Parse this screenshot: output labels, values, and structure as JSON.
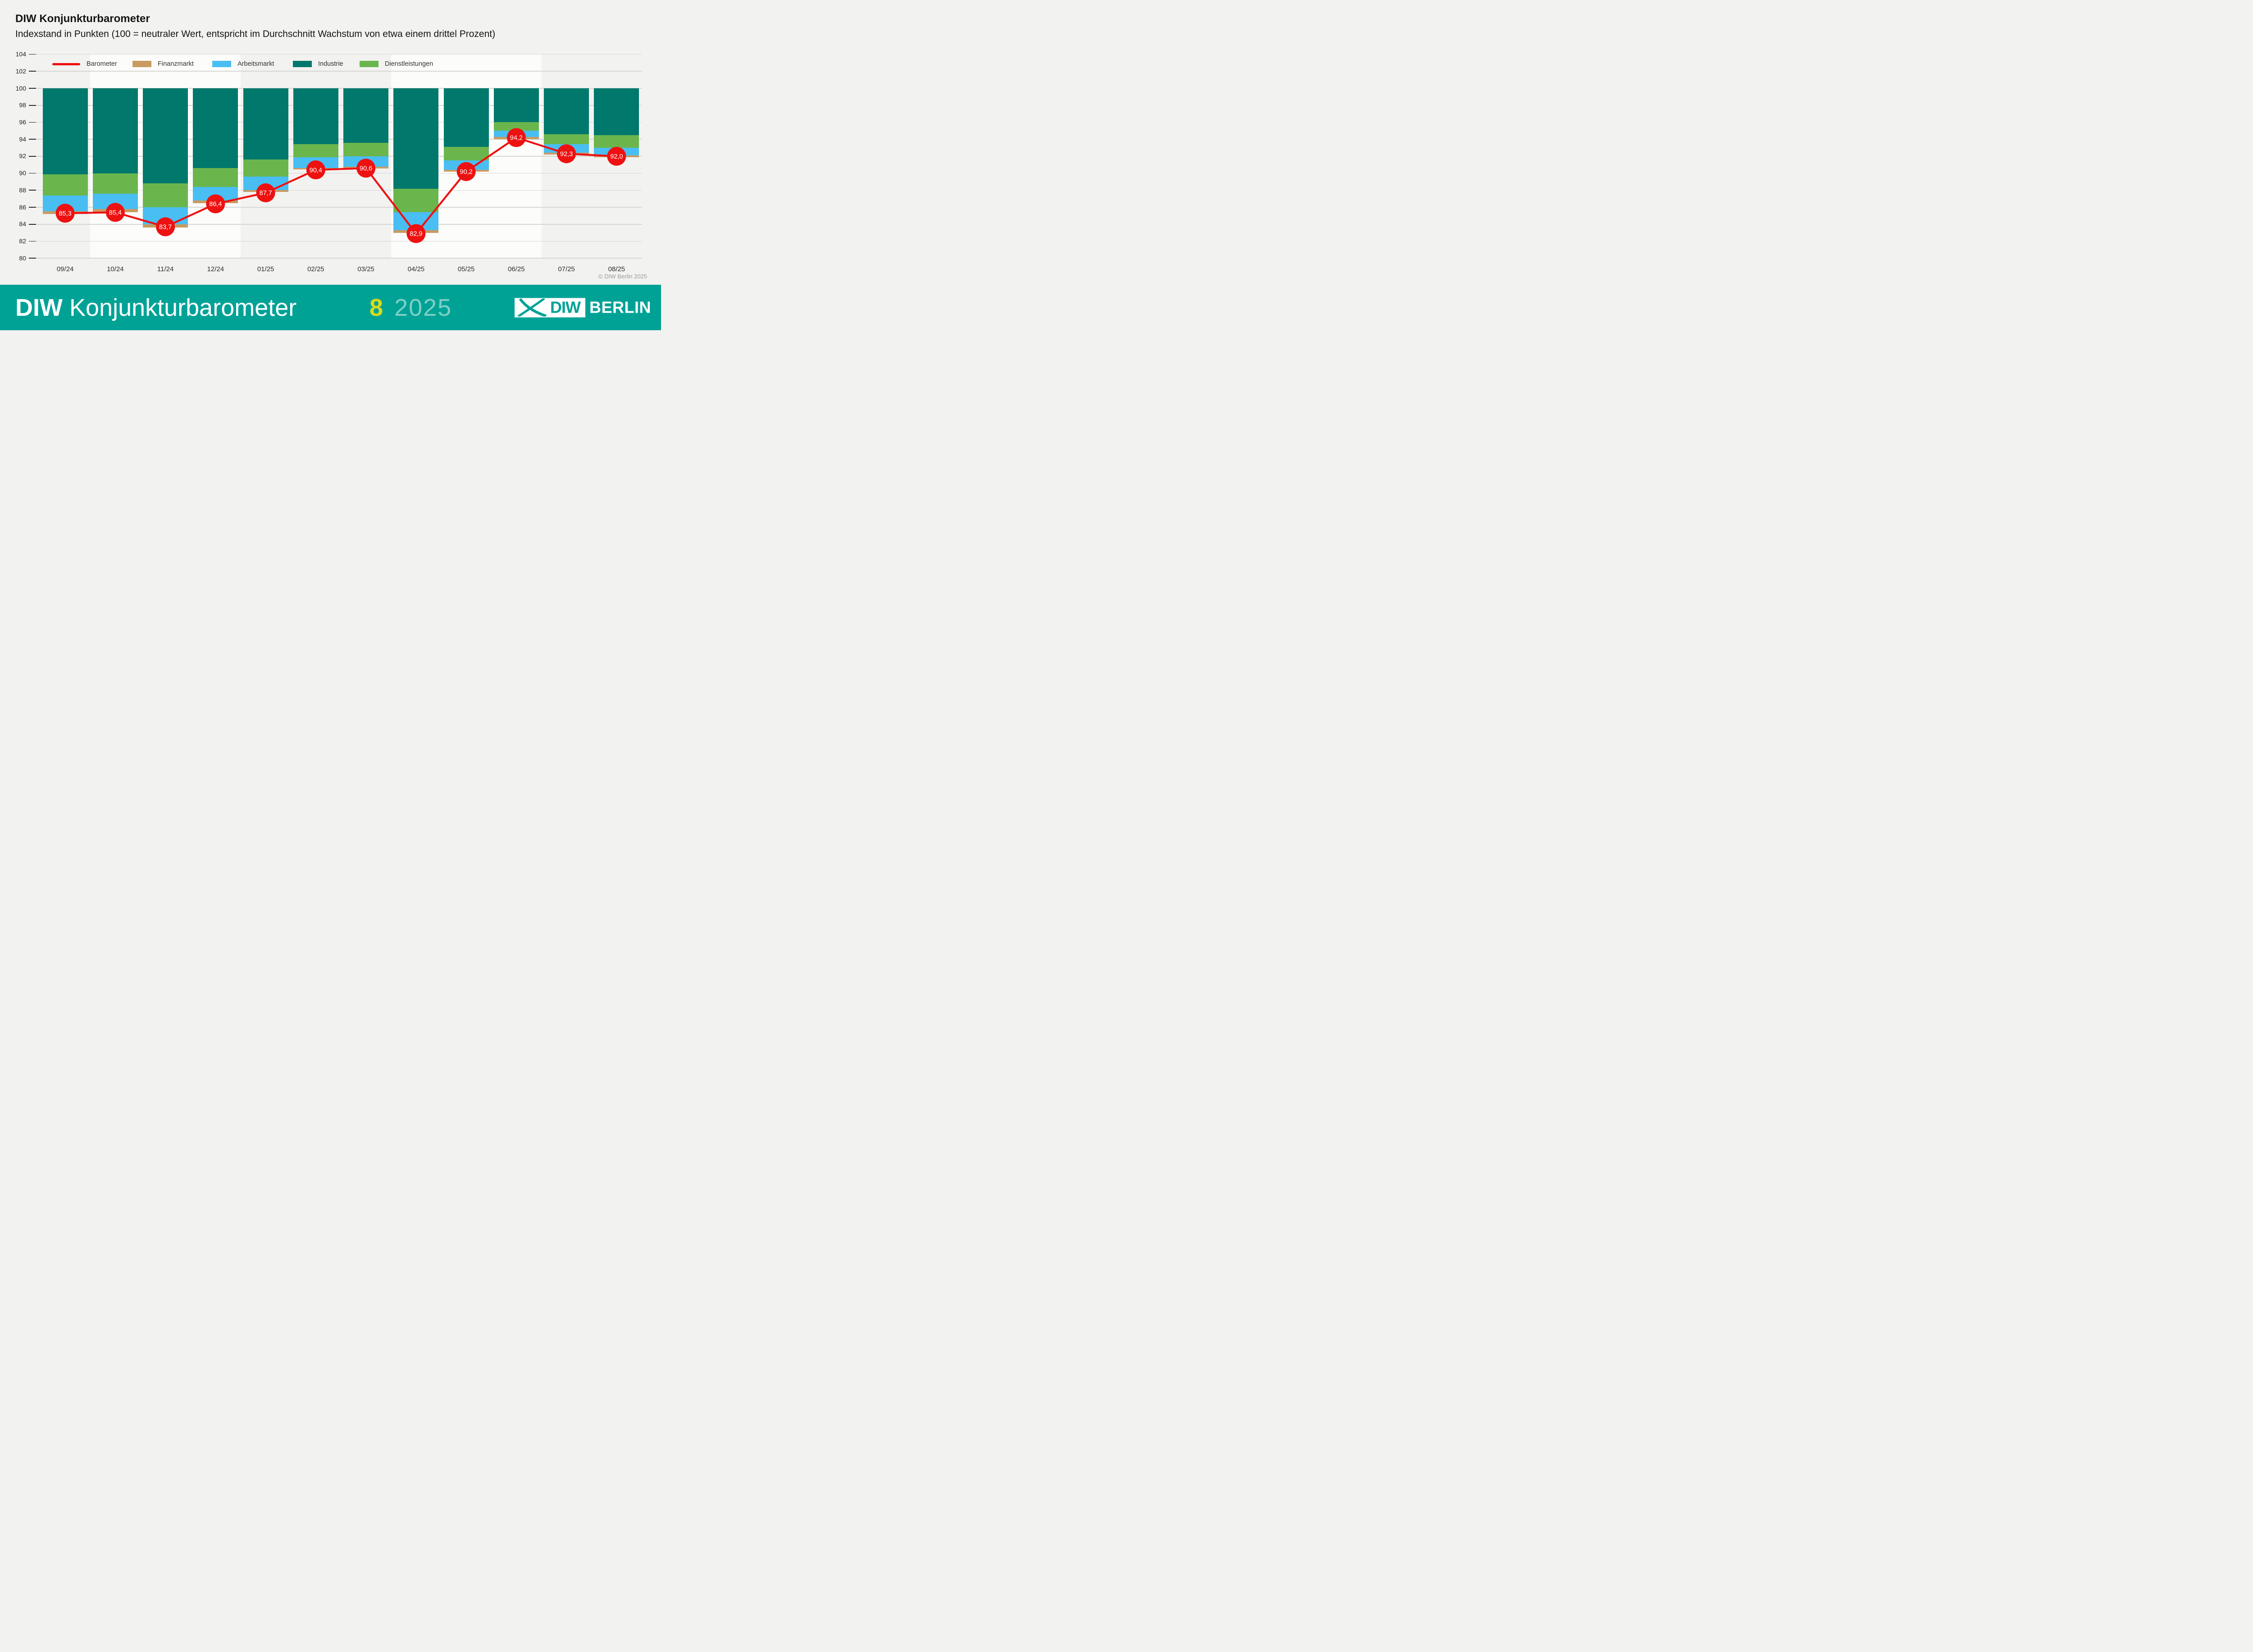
{
  "header": {
    "title": "DIW Konjunkturbarometer",
    "subtitle": "Indexstand in Punkten (100 = neutraler Wert, entspricht im Durchschnitt Wachstum von etwa einem drittel Prozent)"
  },
  "legend": {
    "items": [
      {
        "label": "Barometer",
        "swatch": "line",
        "color": "#ee1111"
      },
      {
        "label": "Finanzmarkt",
        "swatch": "box",
        "color": "#c99b61"
      },
      {
        "label": "Arbeitsmarkt",
        "swatch": "box",
        "color": "#49bef2"
      },
      {
        "label": "Industrie",
        "swatch": "box",
        "color": "#00786c"
      },
      {
        "label": "Dienstleistungen",
        "swatch": "box",
        "color": "#6ab64d"
      }
    ]
  },
  "chart_data": {
    "type": "bar",
    "subtype": "stacked-columns-hanging-from-100-with-line-overlay",
    "title": "DIW Konjunkturbarometer",
    "ylabel": "Indexstand in Punkten",
    "categories": [
      "09/24",
      "10/24",
      "11/24",
      "12/24",
      "01/25",
      "02/25",
      "03/25",
      "04/25",
      "05/25",
      "06/25",
      "07/25",
      "08/25"
    ],
    "ylim": [
      80,
      104
    ],
    "yticks": [
      80,
      82,
      84,
      86,
      88,
      90,
      92,
      94,
      96,
      98,
      100,
      102,
      104
    ],
    "bars_top": 100,
    "grid": true,
    "gridline_color": "#d6d6d3",
    "tick_color": "#2a2a2a",
    "background_color": "#f2f2f0",
    "quarter_highlight_bands": {
      "color": "#fcfcfb",
      "month_ranges": [
        [
          1,
          3
        ],
        [
          7,
          9
        ]
      ]
    },
    "series": [
      {
        "name": "Barometer",
        "type": "line",
        "color": "#ee1111",
        "values": [
          85.3,
          85.4,
          83.7,
          86.4,
          87.7,
          90.4,
          90.6,
          82.9,
          90.2,
          94.2,
          92.3,
          92.0
        ],
        "point_labels": [
          "85,3",
          "85,4",
          "83,7",
          "86,4",
          "87,7",
          "90,4",
          "90,6",
          "82,9",
          "90,2",
          "94,2",
          "92,3",
          "92,0"
        ]
      },
      {
        "name": "Finanzmarkt",
        "type": "bar-segment",
        "color": "#c99b61",
        "spans": [
          [
            85.2,
            85.55
          ],
          [
            85.4,
            85.8
          ],
          [
            83.6,
            84.0
          ],
          [
            86.5,
            86.8
          ],
          [
            87.8,
            88.0
          ],
          [
            90.45,
            90.6
          ],
          [
            90.55,
            90.8
          ],
          [
            83.0,
            83.3
          ],
          [
            90.2,
            90.4
          ],
          [
            94.0,
            94.25
          ],
          [
            92.2,
            92.4
          ],
          [
            91.9,
            92.1
          ]
        ]
      },
      {
        "name": "Arbeitsmarkt",
        "type": "bar-segment",
        "color": "#49bef2",
        "spans": [
          [
            85.55,
            87.4
          ],
          [
            85.8,
            87.6
          ],
          [
            84.0,
            86.0
          ],
          [
            86.8,
            88.4
          ],
          [
            88.0,
            89.6
          ],
          [
            90.6,
            91.9
          ],
          [
            90.8,
            92.0
          ],
          [
            83.3,
            85.4
          ],
          [
            90.4,
            91.5
          ],
          [
            94.25,
            95.0
          ],
          [
            92.4,
            93.4
          ],
          [
            92.1,
            93.0
          ]
        ]
      },
      {
        "name": "Dienstleistungen",
        "type": "bar-segment",
        "color": "#6ab64d",
        "spans": [
          [
            87.4,
            89.85
          ],
          [
            87.6,
            90.0
          ],
          [
            86.0,
            88.8
          ],
          [
            88.4,
            90.6
          ],
          [
            89.6,
            91.6
          ],
          [
            91.9,
            93.4
          ],
          [
            92.0,
            93.6
          ],
          [
            85.4,
            88.2
          ],
          [
            91.5,
            93.1
          ],
          [
            95.0,
            96.0
          ],
          [
            93.4,
            94.6
          ],
          [
            93.0,
            94.5
          ]
        ]
      },
      {
        "name": "Industrie",
        "type": "bar-segment",
        "color": "#00786c",
        "spans": [
          [
            89.85,
            100
          ],
          [
            90.0,
            100
          ],
          [
            88.8,
            100
          ],
          [
            90.6,
            100
          ],
          [
            91.6,
            100
          ],
          [
            93.4,
            100
          ],
          [
            93.6,
            100
          ],
          [
            88.2,
            100
          ],
          [
            93.1,
            100
          ],
          [
            96.0,
            100
          ],
          [
            94.6,
            100
          ],
          [
            94.5,
            100
          ]
        ]
      }
    ]
  },
  "annotations": {
    "copyright": "© DIW Berlin 2025"
  },
  "footer": {
    "brand_bold": "DIW",
    "brand_rest": "Konjunkturbarometer",
    "issue_number": "8",
    "issue_year": "2025",
    "logo": {
      "diw": "DIW",
      "berlin": "BERLIN"
    },
    "colors": {
      "background": "#00a296",
      "issue_number": "#d9db19",
      "issue_year": "#7fcfc5",
      "logo_accent": "#00a296"
    }
  }
}
